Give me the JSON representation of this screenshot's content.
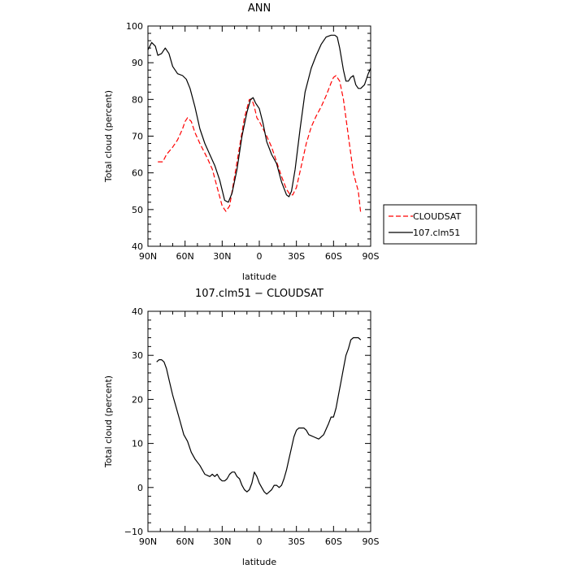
{
  "chart_data": [
    {
      "id": "top",
      "type": "line",
      "title": "ANN",
      "xlabel": "latitude",
      "ylabel": "Total cloud (percent)",
      "xlim": [
        -90,
        90
      ],
      "ylim": [
        40,
        100
      ],
      "xticks": [
        {
          "v": -90,
          "label": "90N"
        },
        {
          "v": -60,
          "label": "60N"
        },
        {
          "v": -30,
          "label": "30N"
        },
        {
          "v": 0,
          "label": "0"
        },
        {
          "v": 30,
          "label": "30S"
        },
        {
          "v": 60,
          "label": "60S"
        },
        {
          "v": 90,
          "label": "90S"
        }
      ],
      "yticks": [
        {
          "v": 40,
          "label": "40"
        },
        {
          "v": 50,
          "label": "50"
        },
        {
          "v": 60,
          "label": "60"
        },
        {
          "v": 70,
          "label": "70"
        },
        {
          "v": 80,
          "label": "80"
        },
        {
          "v": 90,
          "label": "90"
        },
        {
          "v": 100,
          "label": "100"
        }
      ],
      "legend_position": "right",
      "series": [
        {
          "name": "CLOUDSAT",
          "color": "#ff0000",
          "dash": "dashed",
          "x": [
            -82,
            -78,
            -75,
            -70,
            -66,
            -62,
            -60,
            -58,
            -55,
            -52,
            -48,
            -45,
            -42,
            -38,
            -34,
            -30,
            -27,
            -24,
            -20,
            -16,
            -12,
            -8,
            -6,
            -4,
            -2,
            0,
            3,
            6,
            10,
            14,
            18,
            22,
            25,
            27,
            30,
            34,
            38,
            42,
            46,
            50,
            54,
            58,
            60,
            62,
            65,
            68,
            72,
            76,
            80,
            82
          ],
          "y": [
            63,
            63,
            65,
            67,
            69,
            72,
            74,
            75,
            74,
            71,
            68,
            66,
            64,
            61,
            56,
            51,
            49.5,
            51,
            59,
            67,
            75,
            80,
            80,
            78,
            75,
            74,
            72,
            70,
            67,
            63,
            59,
            55.5,
            54,
            54,
            56,
            62,
            68,
            72.5,
            75.5,
            78,
            81,
            84.5,
            86,
            86.5,
            85,
            80,
            70,
            60,
            55,
            49
          ]
        },
        {
          "name": "107.clm51",
          "color": "#000000",
          "dash": "solid",
          "x": [
            -90,
            -87,
            -84,
            -82,
            -79,
            -76,
            -73,
            -70,
            -66,
            -62,
            -59,
            -56,
            -52,
            -48,
            -44,
            -40,
            -36,
            -32,
            -28,
            -25,
            -22,
            -18,
            -14,
            -10,
            -7,
            -5,
            -3,
            0,
            3,
            6,
            10,
            14,
            18,
            22,
            24,
            26,
            29,
            33,
            37,
            42,
            46,
            50,
            54,
            58,
            61,
            63,
            65,
            68,
            70,
            72,
            74,
            76,
            78,
            80,
            82,
            85,
            88,
            90
          ],
          "y": [
            93.5,
            95.5,
            94.5,
            92,
            92.5,
            94,
            92.5,
            89,
            87,
            86.5,
            85.5,
            83,
            78,
            72,
            68,
            65,
            62,
            58,
            52.5,
            52,
            54.5,
            61,
            70,
            76.5,
            80,
            80.5,
            79,
            77.5,
            73.5,
            68.5,
            65,
            62.5,
            57.5,
            54,
            53.5,
            55,
            61,
            72,
            82,
            88.5,
            92,
            95,
            97,
            97.5,
            97.5,
            97,
            94,
            88,
            85,
            85,
            86,
            86.5,
            84,
            83,
            83,
            84,
            87,
            88.5
          ]
        }
      ]
    },
    {
      "id": "bottom",
      "type": "line",
      "title": "107.clm51 − CLOUDSAT",
      "xlabel": "latitude",
      "ylabel": "Total cloud (percent)",
      "xlim": [
        -90,
        90
      ],
      "ylim": [
        -10,
        40
      ],
      "xticks": [
        {
          "v": -90,
          "label": "90N"
        },
        {
          "v": -60,
          "label": "60N"
        },
        {
          "v": -30,
          "label": "30N"
        },
        {
          "v": 0,
          "label": "0"
        },
        {
          "v": 30,
          "label": "30S"
        },
        {
          "v": 60,
          "label": "60S"
        },
        {
          "v": 90,
          "label": "90S"
        }
      ],
      "yticks": [
        {
          "v": -10,
          "label": "−10"
        },
        {
          "v": 0,
          "label": "0"
        },
        {
          "v": 10,
          "label": "10"
        },
        {
          "v": 20,
          "label": "20"
        },
        {
          "v": 30,
          "label": "30"
        },
        {
          "v": 40,
          "label": "40"
        }
      ],
      "series": [
        {
          "color": "#000000",
          "dash": "solid",
          "x": [
            -83,
            -81,
            -79,
            -77,
            -75,
            -73,
            -70,
            -67,
            -64,
            -61,
            -58,
            -55,
            -52,
            -48,
            -44,
            -40,
            -38,
            -36,
            -34,
            -32,
            -30,
            -28,
            -26,
            -24,
            -22,
            -20,
            -18,
            -16,
            -14,
            -12,
            -10,
            -8,
            -6,
            -4,
            -2,
            0,
            2,
            4,
            6,
            8,
            10,
            12,
            14,
            16,
            18,
            20,
            22,
            24,
            26,
            28,
            30,
            32,
            34,
            36,
            38,
            40,
            44,
            48,
            52,
            56,
            58,
            60,
            62,
            64,
            66,
            68,
            70,
            72,
            74,
            76,
            78,
            80,
            82
          ],
          "y": [
            28.5,
            29,
            29,
            28.5,
            27,
            24.5,
            21,
            18,
            15,
            12,
            10.5,
            8,
            6.5,
            5,
            3,
            2.5,
            3,
            2.5,
            3,
            2,
            1.5,
            1.5,
            2,
            3,
            3.5,
            3.5,
            2.5,
            2,
            0.5,
            -0.5,
            -1,
            -0.5,
            1,
            3.5,
            2.5,
            1,
            0,
            -1,
            -1.5,
            -1,
            -0.5,
            0.5,
            0.5,
            0,
            0.5,
            2,
            4,
            6.5,
            9,
            11.5,
            13,
            13.5,
            13.5,
            13.5,
            13,
            12,
            11.5,
            11,
            12,
            14.5,
            16,
            16,
            18,
            21,
            24,
            27,
            30,
            31.5,
            33.5,
            34,
            34,
            34,
            33.5
          ]
        }
      ]
    }
  ]
}
